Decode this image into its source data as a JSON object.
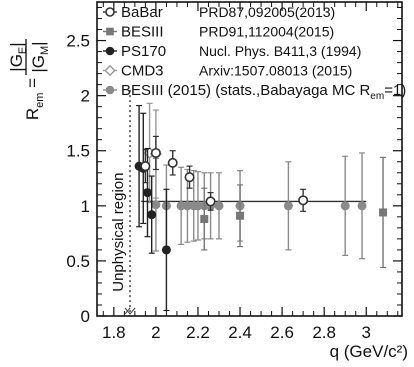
{
  "chart_data": {
    "type": "scatter",
    "title": "",
    "xlabel": "q (GeV/c²)",
    "ylabel_main": "R",
    "ylabel_sub": "em",
    "ylabel_eq": "=",
    "ylabel_num": "|G",
    "ylabel_num_sub": "E",
    "ylabel_num_close": "|",
    "ylabel_den": "|G",
    "ylabel_den_sub": "M",
    "ylabel_den_close": "|",
    "xlim": [
      1.72,
      3.17
    ],
    "ylim": [
      0,
      2.85
    ],
    "xticks": [
      1.8,
      2,
      2.2,
      2.4,
      2.6,
      2.8,
      3
    ],
    "xtick_labels": [
      "1.8",
      "2",
      "2.2",
      "2.4",
      "2.6",
      "2.8",
      "3"
    ],
    "yticks": [
      0,
      0.5,
      1,
      1.5,
      2,
      2.5
    ],
    "ytick_labels": [
      "0",
      "0.5",
      "1",
      "1.5",
      "2",
      "2.5"
    ],
    "grid": false,
    "legend_position": "top-left",
    "threshold_x": 1.877,
    "annotation_text": "Unphysical region",
    "reference_line": {
      "y": 1.04,
      "x_start": 1.93,
      "x_end": 3.0
    },
    "series": [
      {
        "name": "BaBar",
        "reference": "PRD87,092005(2013)",
        "marker": "open-circle",
        "color": "#333333",
        "points": [
          {
            "x": 1.95,
            "y": 1.36,
            "yerr": 0.15
          },
          {
            "x": 2.0,
            "y": 1.48,
            "yerr": 0.15
          },
          {
            "x": 2.08,
            "y": 1.39,
            "yerr": 0.11
          },
          {
            "x": 2.16,
            "y": 1.26,
            "yerr": 0.1
          },
          {
            "x": 2.26,
            "y": 1.04,
            "yerr": 0.08
          },
          {
            "x": 2.7,
            "y": 1.05,
            "yerr": 0.1
          }
        ]
      },
      {
        "name": "BESIII",
        "reference": "PRD91,112004(2015)",
        "marker": "filled-square",
        "color": "#777777",
        "points": [
          {
            "x": 2.23,
            "y": 0.88,
            "yerr": 0.28
          },
          {
            "x": 2.4,
            "y": 0.91,
            "yerr": 0.28
          },
          {
            "x": 3.08,
            "y": 0.94,
            "yerr": 0.5
          }
        ]
      },
      {
        "name": "PS170",
        "reference": "Nucl. Phys. B411,3 (1994)",
        "marker": "filled-circle",
        "color": "#222222",
        "points": [
          {
            "x": 1.92,
            "y": 1.36,
            "yerr": 0.55
          },
          {
            "x": 1.94,
            "y": 1.34,
            "yerr": 0.5
          },
          {
            "x": 1.96,
            "y": 1.12,
            "yerr": 0.4
          },
          {
            "x": 1.98,
            "y": 0.92,
            "yerr": 0.35
          },
          {
            "x": 2.05,
            "y": 0.6,
            "yerr": 0.55
          }
        ]
      },
      {
        "name": "CMD3",
        "reference": "Arxiv:1507.08013 (2015)",
        "marker": "open-diamond",
        "color": "#999999",
        "points": [
          {
            "x": 1.97,
            "y": 1.48,
            "yerr": 0.45
          },
          {
            "x": 2.0,
            "y": 1.47,
            "yerr": 0.4
          }
        ]
      },
      {
        "name": "BESIII (2015) (stats.,Babayaga MC R",
        "name_sub": "em",
        "name_tail": "=1)",
        "reference": "",
        "marker": "filled-circle",
        "color": "#8a8a8a",
        "points": [
          {
            "x": 2.0,
            "y": 1.01,
            "yerr": 0.42
          },
          {
            "x": 2.05,
            "y": 1.0,
            "yerr": 0.37
          },
          {
            "x": 2.12,
            "y": 1.0,
            "yerr": 0.35
          },
          {
            "x": 2.15,
            "y": 1.0,
            "yerr": 0.33
          },
          {
            "x": 2.18,
            "y": 1.0,
            "yerr": 0.32
          },
          {
            "x": 2.2,
            "y": 1.0,
            "yerr": 0.31
          },
          {
            "x": 2.23,
            "y": 1.0,
            "yerr": 0.3
          },
          {
            "x": 2.26,
            "y": 1.0,
            "yerr": 0.3
          },
          {
            "x": 2.3,
            "y": 1.0,
            "yerr": 0.3
          },
          {
            "x": 2.4,
            "y": 1.0,
            "yerr": 0.32
          },
          {
            "x": 2.63,
            "y": 1.0,
            "yerr": 0.4
          },
          {
            "x": 2.9,
            "y": 1.0,
            "yerr": 0.45
          },
          {
            "x": 2.98,
            "y": 1.0,
            "yerr": 0.48
          }
        ]
      }
    ]
  }
}
